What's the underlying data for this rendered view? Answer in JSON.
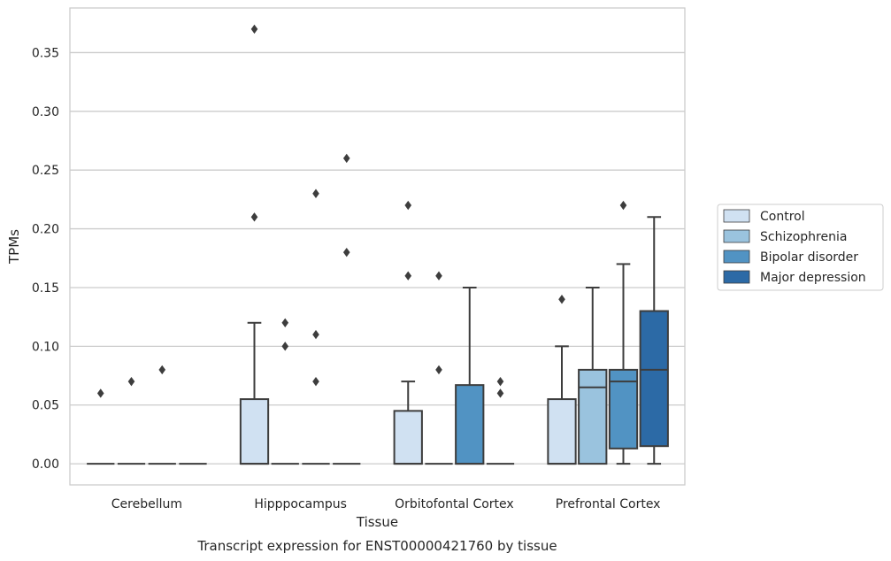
{
  "chart_data": {
    "type": "box",
    "xlabel": "Tissue",
    "ylabel": "TPMs",
    "caption": "Transcript expression for ENST00000421760 by tissue",
    "ylim": [
      -0.018,
      0.388
    ],
    "yticks": [
      "0.00",
      "0.05",
      "0.10",
      "0.15",
      "0.20",
      "0.25",
      "0.30",
      "0.35"
    ],
    "grid": "horizontal",
    "legend_position": "right",
    "categories": [
      "Cerebellum",
      "Hipppocampus",
      "Orbitofontal Cortex",
      "Prefrontal Cortex"
    ],
    "series": [
      {
        "name": "Control",
        "color": "#d0e1f2",
        "boxes": [
          {
            "q1": 0,
            "median": 0,
            "q3": 0,
            "low": 0,
            "high": 0,
            "outliers": [
              0.06
            ]
          },
          {
            "q1": 0,
            "median": 0,
            "q3": 0.055,
            "low": 0,
            "high": 0.12,
            "outliers": [
              0.37,
              0.21
            ]
          },
          {
            "q1": 0,
            "median": 0,
            "q3": 0.045,
            "low": 0,
            "high": 0.07,
            "outliers": [
              0.22,
              0.16
            ]
          },
          {
            "q1": 0,
            "median": 0,
            "q3": 0.055,
            "low": 0,
            "high": 0.1,
            "outliers": [
              0.14
            ]
          }
        ]
      },
      {
        "name": "Schizophrenia",
        "color": "#9ac3de",
        "boxes": [
          {
            "q1": 0,
            "median": 0,
            "q3": 0,
            "low": 0,
            "high": 0,
            "outliers": [
              0.07
            ]
          },
          {
            "q1": 0,
            "median": 0,
            "q3": 0,
            "low": 0,
            "high": 0,
            "outliers": [
              0.12,
              0.1
            ]
          },
          {
            "q1": 0,
            "median": 0,
            "q3": 0,
            "low": 0,
            "high": 0,
            "outliers": [
              0.16,
              0.08
            ]
          },
          {
            "q1": 0,
            "median": 0.065,
            "q3": 0.08,
            "low": 0,
            "high": 0.15,
            "outliers": []
          }
        ]
      },
      {
        "name": "Bipolar disorder",
        "color": "#5193c3",
        "boxes": [
          {
            "q1": 0,
            "median": 0,
            "q3": 0,
            "low": 0,
            "high": 0,
            "outliers": [
              0.08
            ]
          },
          {
            "q1": 0,
            "median": 0,
            "q3": 0,
            "low": 0,
            "high": 0,
            "outliers": [
              0.23,
              0.11,
              0.07
            ]
          },
          {
            "q1": 0,
            "median": 0,
            "q3": 0.067,
            "low": 0,
            "high": 0.15,
            "outliers": []
          },
          {
            "q1": 0.013,
            "median": 0.07,
            "q3": 0.08,
            "low": 0,
            "high": 0.17,
            "outliers": [
              0.22
            ]
          }
        ]
      },
      {
        "name": "Major depression",
        "color": "#2c6aa6",
        "boxes": [
          {
            "q1": 0,
            "median": 0,
            "q3": 0,
            "low": 0,
            "high": 0,
            "outliers": []
          },
          {
            "q1": 0,
            "median": 0,
            "q3": 0,
            "low": 0,
            "high": 0,
            "outliers": [
              0.26,
              0.18
            ]
          },
          {
            "q1": 0,
            "median": 0,
            "q3": 0,
            "low": 0,
            "high": 0,
            "outliers": [
              0.07,
              0.06
            ]
          },
          {
            "q1": 0.015,
            "median": 0.08,
            "q3": 0.13,
            "low": 0,
            "high": 0.21,
            "outliers": []
          }
        ]
      }
    ]
  }
}
